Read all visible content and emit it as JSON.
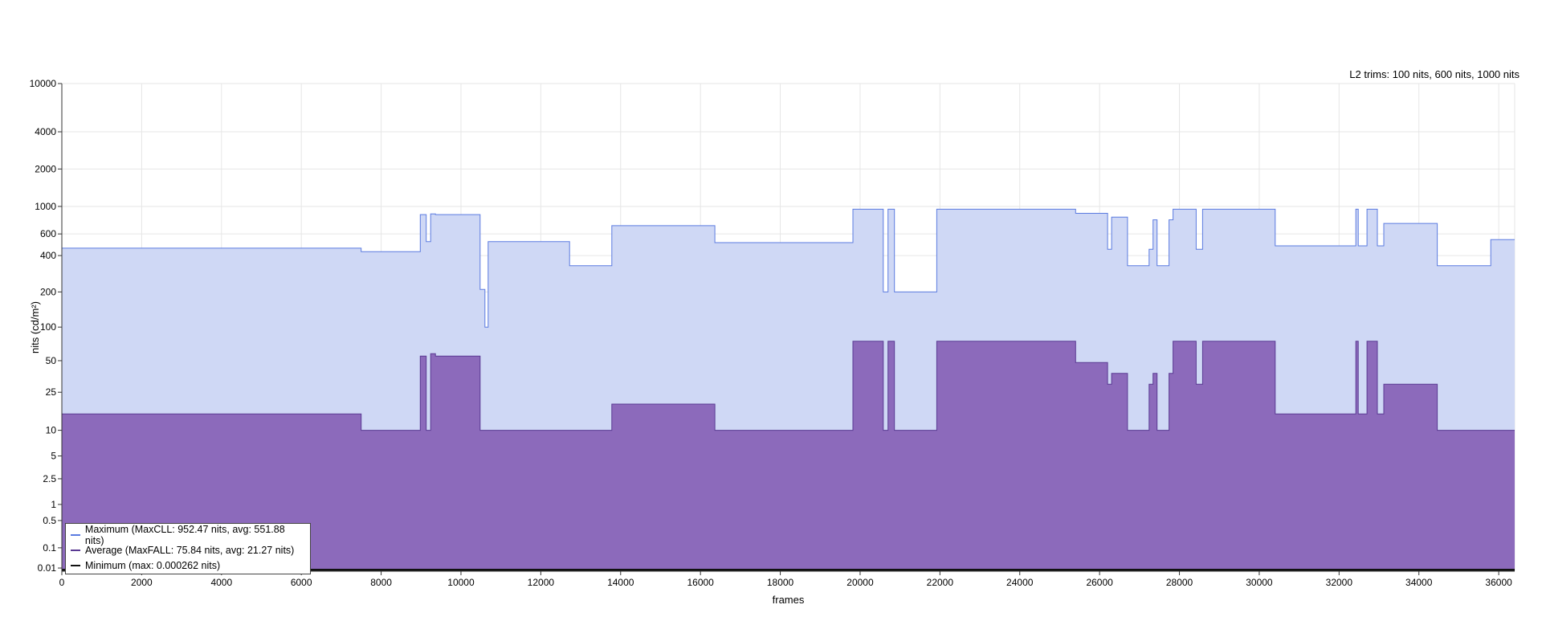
{
  "chart_data": {
    "type": "area",
    "title": "",
    "subtitle": "L2 trims: 100 nits, 600 nits, 1000 nits",
    "xlabel": "frames",
    "ylabel": "nits (cd/m²)",
    "xlim": [
      0,
      36400
    ],
    "ylim": [
      0.005,
      10000
    ],
    "yscale": "pq",
    "x_ticks": [
      0,
      2000,
      4000,
      6000,
      8000,
      10000,
      12000,
      14000,
      16000,
      18000,
      20000,
      22000,
      24000,
      26000,
      28000,
      30000,
      32000,
      34000,
      36000
    ],
    "y_ticks": [
      0.01,
      0.1,
      0.5,
      1,
      2.5,
      5,
      10,
      25,
      50,
      100,
      200,
      400,
      600,
      1000,
      2000,
      4000,
      10000
    ],
    "y_tick_labels": [
      "0.01",
      "0.1",
      "0.5",
      "1",
      "2.5",
      "5",
      "10",
      "25",
      "50",
      "100",
      "200",
      "400",
      "600",
      "1000",
      "2000",
      "4000",
      "10000"
    ],
    "grid": true,
    "legend_position": "bottom-left",
    "series": [
      {
        "name": "Maximum (MaxCLL: 952.47 nits, avg: 551.88 nits)",
        "color": "#5b7be0",
        "fill": "#cfd8f5",
        "steps": [
          [
            0,
            460
          ],
          [
            7500,
            430
          ],
          [
            8980,
            860
          ],
          [
            9130,
            520
          ],
          [
            9240,
            870
          ],
          [
            9360,
            860
          ],
          [
            10480,
            210
          ],
          [
            10600,
            100
          ],
          [
            10680,
            520
          ],
          [
            12720,
            330
          ],
          [
            13780,
            700
          ],
          [
            16360,
            510
          ],
          [
            19820,
            950
          ],
          [
            20580,
            200
          ],
          [
            20700,
            950
          ],
          [
            20860,
            200
          ],
          [
            21920,
            950
          ],
          [
            25400,
            880
          ],
          [
            26200,
            450
          ],
          [
            26300,
            820
          ],
          [
            26700,
            330
          ],
          [
            27240,
            450
          ],
          [
            27340,
            780
          ],
          [
            27440,
            330
          ],
          [
            27740,
            780
          ],
          [
            27840,
            950
          ],
          [
            28420,
            450
          ],
          [
            28580,
            950
          ],
          [
            30400,
            480
          ],
          [
            32420,
            950
          ],
          [
            32480,
            480
          ],
          [
            32700,
            950
          ],
          [
            32960,
            480
          ],
          [
            33120,
            730
          ],
          [
            34460,
            330
          ],
          [
            35800,
            540
          ],
          [
            36400,
            540
          ]
        ]
      },
      {
        "name": "Average (MaxFALL: 75.84 nits, avg: 21.27 nits)",
        "color": "#5a3a93",
        "fill": "#8c6abb",
        "steps": [
          [
            0,
            15
          ],
          [
            7500,
            10
          ],
          [
            8980,
            55
          ],
          [
            9130,
            10
          ],
          [
            9240,
            58
          ],
          [
            9360,
            55
          ],
          [
            10480,
            10
          ],
          [
            13780,
            19
          ],
          [
            16360,
            10
          ],
          [
            19820,
            75
          ],
          [
            20580,
            10
          ],
          [
            20700,
            75
          ],
          [
            20860,
            10
          ],
          [
            21920,
            75
          ],
          [
            25400,
            48
          ],
          [
            26200,
            30
          ],
          [
            26300,
            38
          ],
          [
            26700,
            10
          ],
          [
            27240,
            30
          ],
          [
            27340,
            38
          ],
          [
            27440,
            10
          ],
          [
            27740,
            38
          ],
          [
            27840,
            75
          ],
          [
            28420,
            30
          ],
          [
            28580,
            75
          ],
          [
            30400,
            15
          ],
          [
            32420,
            75
          ],
          [
            32480,
            15
          ],
          [
            32700,
            75
          ],
          [
            32960,
            15
          ],
          [
            33120,
            30
          ],
          [
            34460,
            10
          ],
          [
            36400,
            10
          ]
        ]
      },
      {
        "name": "Minimum (max: 0.000262 nits)",
        "color": "#111111",
        "fill": "#111111",
        "steps": [
          [
            0,
            0.0002
          ],
          [
            36400,
            0.0002
          ]
        ]
      }
    ]
  }
}
